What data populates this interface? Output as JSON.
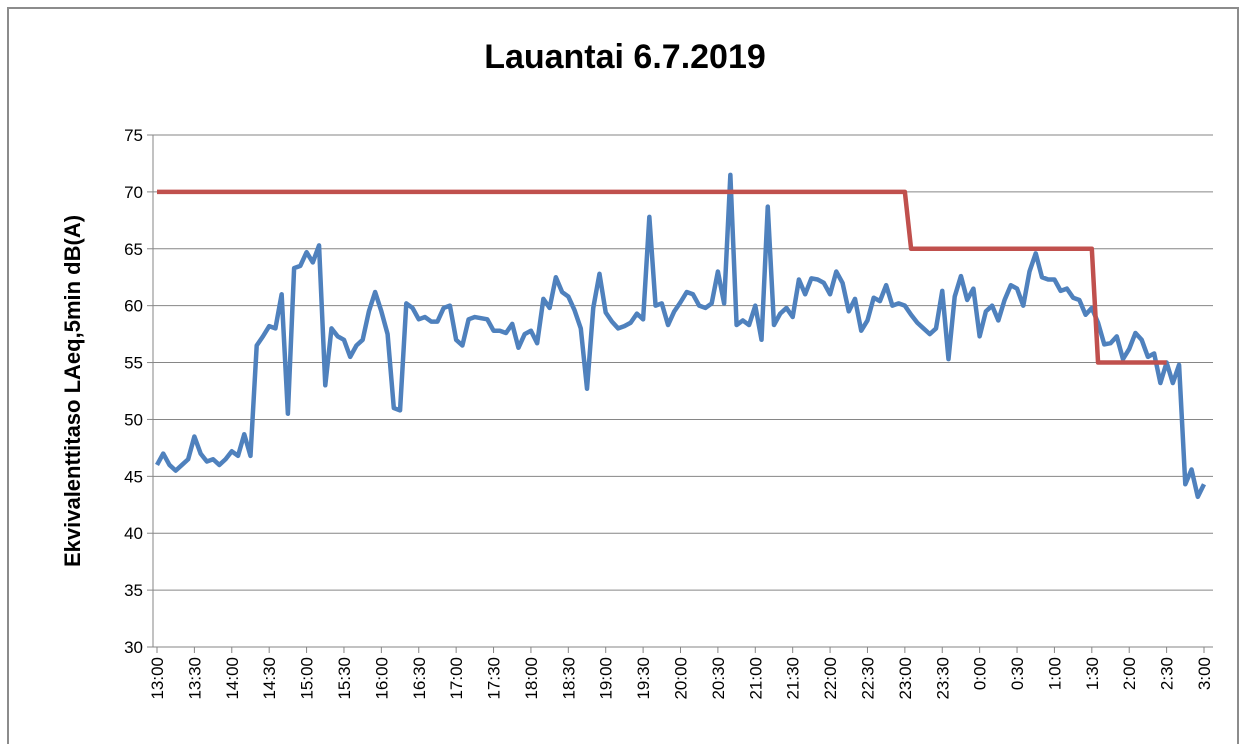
{
  "chart_data": {
    "type": "line",
    "title": "Lauantai 6.7.2019",
    "y_label": "Ekvivalenttitaso LAeq,5min dB(A)",
    "categories": [
      "13:00",
      null,
      null,
      null,
      null,
      null,
      "13:30",
      null,
      null,
      null,
      null,
      null,
      "14:00",
      null,
      null,
      null,
      null,
      null,
      "14:30",
      null,
      null,
      null,
      null,
      null,
      "15:00",
      null,
      null,
      null,
      null,
      null,
      "15:30",
      null,
      null,
      null,
      null,
      null,
      "16:00",
      null,
      null,
      null,
      null,
      null,
      "16:30",
      null,
      null,
      null,
      null,
      null,
      "17:00",
      null,
      null,
      null,
      null,
      null,
      "17:30",
      null,
      null,
      null,
      null,
      null,
      "18:00",
      null,
      null,
      null,
      null,
      null,
      "18:30",
      null,
      null,
      null,
      null,
      null,
      "19:00",
      null,
      null,
      null,
      null,
      null,
      "19:30",
      null,
      null,
      null,
      null,
      null,
      "20:00",
      null,
      null,
      null,
      null,
      null,
      "20:30",
      null,
      null,
      null,
      null,
      null,
      "21:00",
      null,
      null,
      null,
      null,
      null,
      "21:30",
      null,
      null,
      null,
      null,
      null,
      "22:00",
      null,
      null,
      null,
      null,
      null,
      "22:30",
      null,
      null,
      null,
      null,
      null,
      "23:00",
      null,
      null,
      null,
      null,
      null,
      "23:30",
      null,
      null,
      null,
      null,
      null,
      "0:00",
      null,
      null,
      null,
      null,
      null,
      "0:30",
      null,
      null,
      null,
      null,
      null,
      "1:00",
      null,
      null,
      null,
      null,
      null,
      "1:30",
      null,
      null,
      null,
      null,
      null,
      "2:00",
      null,
      null,
      null,
      null,
      null,
      "2:30",
      null,
      null,
      null,
      null,
      null,
      "3:00"
    ],
    "series": [
      {
        "color": "#4f81bd",
        "values": [
          46,
          47,
          46,
          45.5,
          46,
          46.5,
          48.5,
          47,
          46.3,
          46.5,
          46,
          46.5,
          47.2,
          46.8,
          48.7,
          46.8,
          56.5,
          57.3,
          58.2,
          58,
          61,
          50.5,
          63.3,
          63.5,
          64.7,
          63.8,
          65.3,
          53,
          58,
          57.3,
          57,
          55.5,
          56.5,
          57,
          59.5,
          61.2,
          59.5,
          57.5,
          51,
          50.8,
          60.2,
          59.8,
          58.8,
          59,
          58.6,
          58.6,
          59.8,
          60,
          57,
          56.5,
          58.8,
          59,
          58.9,
          58.8,
          57.8,
          57.8,
          57.6,
          58.4,
          56.3,
          57.5,
          57.8,
          56.7,
          60.6,
          59.8,
          62.5,
          61.2,
          60.8,
          59.6,
          58,
          52.7,
          59.8,
          62.8,
          59.4,
          58.6,
          58,
          58.2,
          58.5,
          59.3,
          58.8,
          67.8,
          60,
          60.2,
          58.3,
          59.5,
          60.3,
          61.2,
          61,
          60,
          59.8,
          60.2,
          63,
          60.2,
          71.5,
          58.3,
          58.7,
          58.3,
          60,
          57,
          68.7,
          58.3,
          59.3,
          59.8,
          59,
          62.3,
          61,
          62.4,
          62.3,
          62,
          61,
          63,
          62,
          59.5,
          60.6,
          57.8,
          58.7,
          60.7,
          60.4,
          61.8,
          60,
          60.2,
          60,
          59.2,
          58.5,
          58,
          57.5,
          58,
          61.3,
          55.3,
          60.8,
          62.6,
          60.5,
          61.5,
          57.3,
          59.5,
          60,
          58.7,
          60.5,
          61.8,
          61.5,
          60,
          63,
          64.6,
          62.5,
          62.3,
          62.3,
          61.3,
          61.5,
          60.7,
          60.5,
          59.2,
          59.8,
          58.5,
          56.6,
          56.7,
          57.3,
          55.3,
          56.2,
          57.6,
          57,
          55.5,
          55.8,
          53.2,
          55,
          53.2,
          54.8,
          44.3,
          45.6,
          43.2,
          44.3
        ]
      },
      {
        "color": "#c0504d",
        "values": [
          70,
          70,
          70,
          70,
          70,
          70,
          70,
          70,
          70,
          70,
          70,
          70,
          70,
          70,
          70,
          70,
          70,
          70,
          70,
          70,
          70,
          70,
          70,
          70,
          70,
          70,
          70,
          70,
          70,
          70,
          70,
          70,
          70,
          70,
          70,
          70,
          70,
          70,
          70,
          70,
          70,
          70,
          70,
          70,
          70,
          70,
          70,
          70,
          70,
          70,
          70,
          70,
          70,
          70,
          70,
          70,
          70,
          70,
          70,
          70,
          70,
          70,
          70,
          70,
          70,
          70,
          70,
          70,
          70,
          70,
          70,
          70,
          70,
          70,
          70,
          70,
          70,
          70,
          70,
          70,
          70,
          70,
          70,
          70,
          70,
          70,
          70,
          70,
          70,
          70,
          70,
          70,
          70,
          70,
          70,
          70,
          70,
          70,
          70,
          70,
          70,
          70,
          70,
          70,
          70,
          70,
          70,
          70,
          70,
          70,
          70,
          70,
          70,
          70,
          70,
          70,
          70,
          70,
          70,
          70,
          70,
          65,
          65,
          65,
          65,
          65,
          65,
          65,
          65,
          65,
          65,
          65,
          65,
          65,
          65,
          65,
          65,
          65,
          65,
          65,
          65,
          65,
          65,
          65,
          65,
          65,
          65,
          65,
          65,
          65,
          65,
          55,
          55,
          55,
          55,
          55,
          55,
          55,
          55,
          55,
          55,
          55,
          55,
          null,
          null,
          null,
          null,
          null,
          null
        ]
      }
    ],
    "ylim": [
      30,
      75
    ],
    "yticks": [
      30,
      35,
      40,
      45,
      50,
      55,
      60,
      65,
      70,
      75
    ],
    "grid": true
  }
}
